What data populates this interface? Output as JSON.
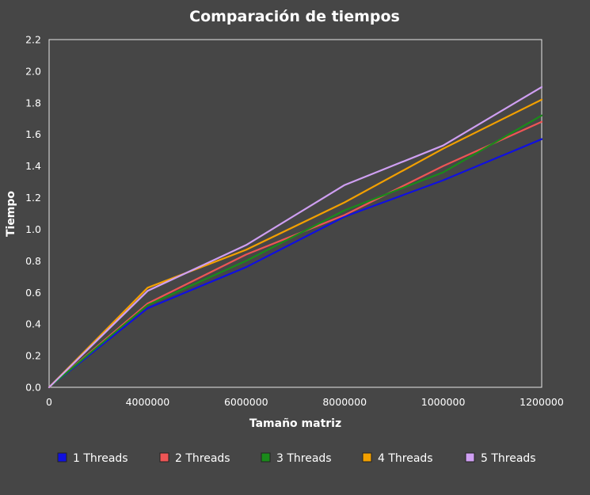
{
  "chart_data": {
    "type": "line",
    "title": "Comparación de tiempos",
    "xlabel": "Tamaño matriz",
    "ylabel": "Tiempo",
    "categories": [
      "0",
      "4000000",
      "6000000",
      "8000000",
      "1000000",
      "1200000"
    ],
    "ylim": [
      0,
      2.2
    ],
    "yticks": [
      "0.0",
      "0.2",
      "0.4",
      "0.6",
      "0.8",
      "1.0",
      "1.2",
      "1.4",
      "1.6",
      "1.8",
      "2.0",
      "2.2"
    ],
    "grid": false,
    "legend_position": "bottom",
    "series": [
      {
        "name": "1 Threads",
        "color": "#1010e0",
        "values": [
          0.0,
          0.5,
          0.76,
          1.08,
          1.31,
          1.57
        ]
      },
      {
        "name": "2 Threads",
        "color": "#ee5555",
        "values": [
          0.0,
          0.53,
          0.84,
          1.09,
          1.4,
          1.68
        ]
      },
      {
        "name": "3 Threads",
        "color": "#1a8a1a",
        "values": [
          0.0,
          0.52,
          0.8,
          1.12,
          1.36,
          1.72
        ]
      },
      {
        "name": "4 Threads",
        "color": "#f2a000",
        "values": [
          0.0,
          0.63,
          0.87,
          1.17,
          1.51,
          1.82
        ]
      },
      {
        "name": "5 Threads",
        "color": "#cf9ff2",
        "values": [
          0.0,
          0.61,
          0.9,
          1.28,
          1.53,
          1.9
        ]
      }
    ]
  }
}
